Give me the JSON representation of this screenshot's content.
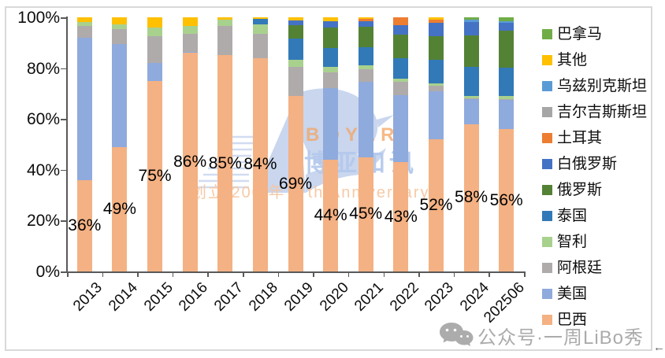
{
  "chart_data": {
    "type": "bar",
    "subtype": "stacked-100-percent",
    "title": "",
    "xlabel": "",
    "ylabel": "",
    "grid": false,
    "legend_position": "right",
    "categories": [
      "2013",
      "2014",
      "2015",
      "2016",
      "2017",
      "2018",
      "2019",
      "2020",
      "2021",
      "2022",
      "2023",
      "2024",
      "202506"
    ],
    "y_axis": {
      "min": 0,
      "max": 100,
      "ticks": [
        "0%",
        "20%",
        "40%",
        "60%",
        "80%",
        "100%"
      ]
    },
    "series": [
      {
        "name": "巴西",
        "color": "#F4B183",
        "values": [
          36,
          49,
          75,
          86,
          85,
          84,
          69,
          44,
          45,
          43,
          52,
          58,
          56
        ]
      },
      {
        "name": "美国",
        "color": "#8FAADC",
        "values": [
          56,
          40.5,
          7,
          0.5,
          0,
          0,
          0,
          28,
          29.5,
          26.4,
          19,
          9.7,
          11.4
        ]
      },
      {
        "name": "阿根廷",
        "color": "#AFABAB",
        "values": [
          4.5,
          6,
          10.5,
          7,
          11.5,
          9.5,
          11.4,
          6.2,
          5.2,
          5.2,
          2.1,
          0.5,
          0.5
        ]
      },
      {
        "name": "智利",
        "color": "#A9D18E",
        "values": [
          1.5,
          1.8,
          3.5,
          3.2,
          2.5,
          3.8,
          2.8,
          2.3,
          1.4,
          1.4,
          1,
          0.7,
          1
        ]
      },
      {
        "name": "泰国",
        "color": "#3279B7",
        "values": [
          0,
          0,
          0,
          0,
          0,
          2,
          8.3,
          7.3,
          7,
          7.8,
          9.3,
          11.5,
          11.4
        ]
      },
      {
        "name": "俄罗斯",
        "color": "#548235",
        "values": [
          0,
          0,
          0,
          0,
          0,
          0,
          5.5,
          8.1,
          8.3,
          9.5,
          9.1,
          12.5,
          14.5
        ]
      },
      {
        "name": "白俄罗斯",
        "color": "#4472C4",
        "values": [
          0,
          0,
          0,
          0,
          0,
          0,
          1.8,
          2.7,
          2.1,
          3.7,
          5.2,
          5.3,
          2.9
        ]
      },
      {
        "name": "土耳其",
        "color": "#ED7D31",
        "values": [
          0,
          0,
          0,
          0,
          0,
          0,
          0,
          0,
          1,
          3,
          1.3,
          0,
          0
        ]
      },
      {
        "name": "吉尔吉斯斯坦",
        "color": "#A6A6A6",
        "values": [
          0,
          0,
          0,
          0,
          0,
          0,
          0,
          0,
          0,
          0,
          0,
          0,
          0
        ]
      },
      {
        "name": "乌兹别克斯坦",
        "color": "#5B9BD5",
        "values": [
          0,
          0,
          0,
          0,
          0,
          0,
          0,
          0,
          0,
          0,
          0,
          1,
          0.9
        ]
      },
      {
        "name": "其他",
        "color": "#FFC000",
        "values": [
          2,
          2.7,
          4,
          3.3,
          1,
          0.7,
          1.2,
          1.4,
          0.5,
          0,
          1,
          0,
          0
        ]
      },
      {
        "name": "巴拿马",
        "color": "#70AD47",
        "values": [
          0,
          0,
          0,
          0,
          0,
          0,
          0,
          0,
          0,
          0,
          0,
          0.8,
          1.4
        ]
      }
    ],
    "bar_labels": [
      "36%",
      "49%",
      "75%",
      "86%",
      "85%",
      "84%",
      "69%",
      "44%",
      "45%",
      "43%",
      "52%",
      "58%",
      "56%"
    ],
    "bar_labels_series": "巴西",
    "legend_order_top_to_bottom": [
      "巴拿马",
      "其他",
      "乌兹别克斯坦",
      "吉尔吉斯斯坦",
      "土耳其",
      "白俄罗斯",
      "俄罗斯",
      "泰国",
      "智利",
      "阿根廷",
      "美国",
      "巴西"
    ]
  },
  "watermarks": {
    "boyar": {
      "brand": "BOYAR",
      "brand_cn": "博亚和讯",
      "tagline": "创立 200 年 2 th Anniversary"
    },
    "wechat": {
      "text": "公众号·一周LiBo秀"
    }
  },
  "nav": {
    "back_arrow": "←"
  }
}
